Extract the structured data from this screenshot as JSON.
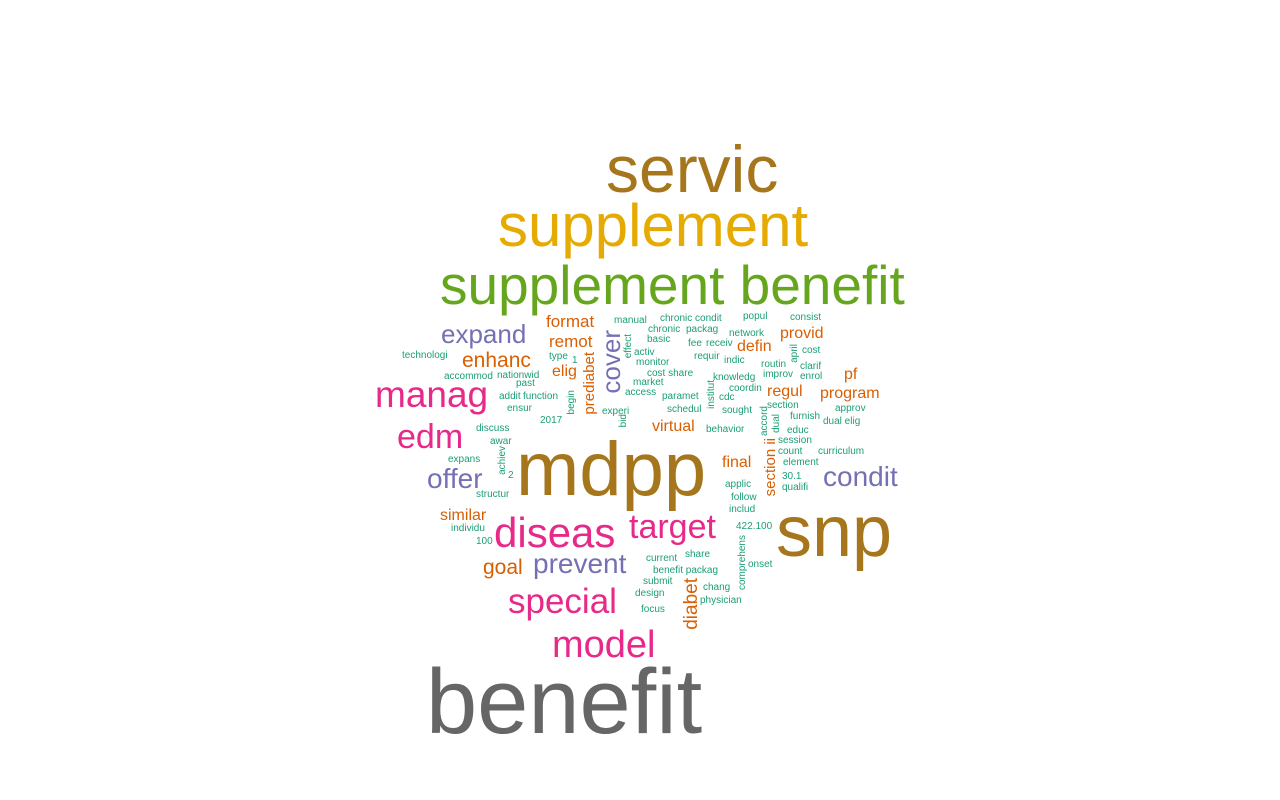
{
  "colors": {
    "gold": "#a6761d",
    "mustard": "#e6ab02",
    "green": "#66a61e",
    "magenta": "#e7298a",
    "purple": "#7570b3",
    "orange": "#d95f02",
    "teal": "#1b9e77",
    "gray": "#666666"
  },
  "words": [
    {
      "text": "servic",
      "color": "gold"
    },
    {
      "text": "supplement",
      "color": "mustard"
    },
    {
      "text": "supplement benefit",
      "color": "green"
    },
    {
      "text": "mdpp",
      "color": "gold"
    },
    {
      "text": "snp",
      "color": "gold"
    },
    {
      "text": "benefit",
      "color": "gray"
    },
    {
      "text": "manag",
      "color": "magenta"
    },
    {
      "text": "edm",
      "color": "magenta"
    },
    {
      "text": "diseas",
      "color": "magenta"
    },
    {
      "text": "target",
      "color": "magenta"
    },
    {
      "text": "special",
      "color": "magenta"
    },
    {
      "text": "model",
      "color": "magenta"
    },
    {
      "text": "expand",
      "color": "purple"
    },
    {
      "text": "offer",
      "color": "purple"
    },
    {
      "text": "prevent",
      "color": "purple"
    },
    {
      "text": "condit",
      "color": "purple"
    },
    {
      "text": "cover",
      "color": "purple"
    },
    {
      "text": "enhanc",
      "color": "orange"
    },
    {
      "text": "format",
      "color": "orange"
    },
    {
      "text": "remot",
      "color": "orange"
    },
    {
      "text": "elig",
      "color": "orange"
    },
    {
      "text": "provid",
      "color": "orange"
    },
    {
      "text": "defin",
      "color": "orange"
    },
    {
      "text": "regul",
      "color": "orange"
    },
    {
      "text": "pf",
      "color": "orange"
    },
    {
      "text": "program",
      "color": "orange"
    },
    {
      "text": "virtual",
      "color": "orange"
    },
    {
      "text": "final",
      "color": "orange"
    },
    {
      "text": "similar",
      "color": "orange"
    },
    {
      "text": "goal",
      "color": "orange"
    },
    {
      "text": "prediabet",
      "color": "orange"
    },
    {
      "text": "diabet",
      "color": "orange"
    },
    {
      "text": "section ii",
      "color": "orange"
    },
    {
      "text": "manual",
      "color": "teal"
    },
    {
      "text": "chronic condit",
      "color": "teal"
    },
    {
      "text": "popul",
      "color": "teal"
    },
    {
      "text": "consist",
      "color": "teal"
    },
    {
      "text": "chronic",
      "color": "teal"
    },
    {
      "text": "packag",
      "color": "teal"
    },
    {
      "text": "network",
      "color": "teal"
    },
    {
      "text": "basic",
      "color": "teal"
    },
    {
      "text": "fee",
      "color": "teal"
    },
    {
      "text": "receiv",
      "color": "teal"
    },
    {
      "text": "cost",
      "color": "teal"
    },
    {
      "text": "activ",
      "color": "teal"
    },
    {
      "text": "requir",
      "color": "teal"
    },
    {
      "text": "indic",
      "color": "teal"
    },
    {
      "text": "april",
      "color": "teal"
    },
    {
      "text": "technologi",
      "color": "teal"
    },
    {
      "text": "type",
      "color": "teal"
    },
    {
      "text": "monitor",
      "color": "teal"
    },
    {
      "text": "routin",
      "color": "teal"
    },
    {
      "text": "clarif",
      "color": "teal"
    },
    {
      "text": "accommod",
      "color": "teal"
    },
    {
      "text": "nationwid",
      "color": "teal"
    },
    {
      "text": "cost share",
      "color": "teal"
    },
    {
      "text": "knowledg",
      "color": "teal"
    },
    {
      "text": "improv",
      "color": "teal"
    },
    {
      "text": "enrol",
      "color": "teal"
    },
    {
      "text": "past",
      "color": "teal"
    },
    {
      "text": "market",
      "color": "teal"
    },
    {
      "text": "coordin",
      "color": "teal"
    },
    {
      "text": "addit",
      "color": "teal"
    },
    {
      "text": "function",
      "color": "teal"
    },
    {
      "text": "access",
      "color": "teal"
    },
    {
      "text": "paramet",
      "color": "teal"
    },
    {
      "text": "cdc",
      "color": "teal"
    },
    {
      "text": "section",
      "color": "teal"
    },
    {
      "text": "approv",
      "color": "teal"
    },
    {
      "text": "ensur",
      "color": "teal"
    },
    {
      "text": "begin",
      "color": "teal"
    },
    {
      "text": "experi",
      "color": "teal"
    },
    {
      "text": "schedul",
      "color": "teal"
    },
    {
      "text": "sought",
      "color": "teal"
    },
    {
      "text": "furnish",
      "color": "teal"
    },
    {
      "text": "2017",
      "color": "teal"
    },
    {
      "text": "bid",
      "color": "teal"
    },
    {
      "text": "accord",
      "color": "teal"
    },
    {
      "text": "dual",
      "color": "teal"
    },
    {
      "text": "dual elig",
      "color": "teal"
    },
    {
      "text": "discuss",
      "color": "teal"
    },
    {
      "text": "behavior",
      "color": "teal"
    },
    {
      "text": "educ",
      "color": "teal"
    },
    {
      "text": "awar",
      "color": "teal"
    },
    {
      "text": "session",
      "color": "teal"
    },
    {
      "text": "achiev",
      "color": "teal"
    },
    {
      "text": "count",
      "color": "teal"
    },
    {
      "text": "curriculum",
      "color": "teal"
    },
    {
      "text": "expans",
      "color": "teal"
    },
    {
      "text": "element",
      "color": "teal"
    },
    {
      "text": "2",
      "color": "teal"
    },
    {
      "text": "30.1",
      "color": "teal"
    },
    {
      "text": "applic",
      "color": "teal"
    },
    {
      "text": "qualifi",
      "color": "teal"
    },
    {
      "text": "structur",
      "color": "teal"
    },
    {
      "text": "follow",
      "color": "teal"
    },
    {
      "text": "includ",
      "color": "teal"
    },
    {
      "text": "individu",
      "color": "teal"
    },
    {
      "text": "422.100",
      "color": "teal"
    },
    {
      "text": "100",
      "color": "teal"
    },
    {
      "text": "comprehens",
      "color": "teal"
    },
    {
      "text": "current",
      "color": "teal"
    },
    {
      "text": "share",
      "color": "teal"
    },
    {
      "text": "benefit packag",
      "color": "teal"
    },
    {
      "text": "onset",
      "color": "teal"
    },
    {
      "text": "submit",
      "color": "teal"
    },
    {
      "text": "chang",
      "color": "teal"
    },
    {
      "text": "design",
      "color": "teal"
    },
    {
      "text": "physician",
      "color": "teal"
    },
    {
      "text": "focus",
      "color": "teal"
    },
    {
      "text": "effect",
      "color": "teal"
    },
    {
      "text": "institut",
      "color": "teal"
    },
    {
      "text": "1",
      "color": "teal"
    }
  ]
}
